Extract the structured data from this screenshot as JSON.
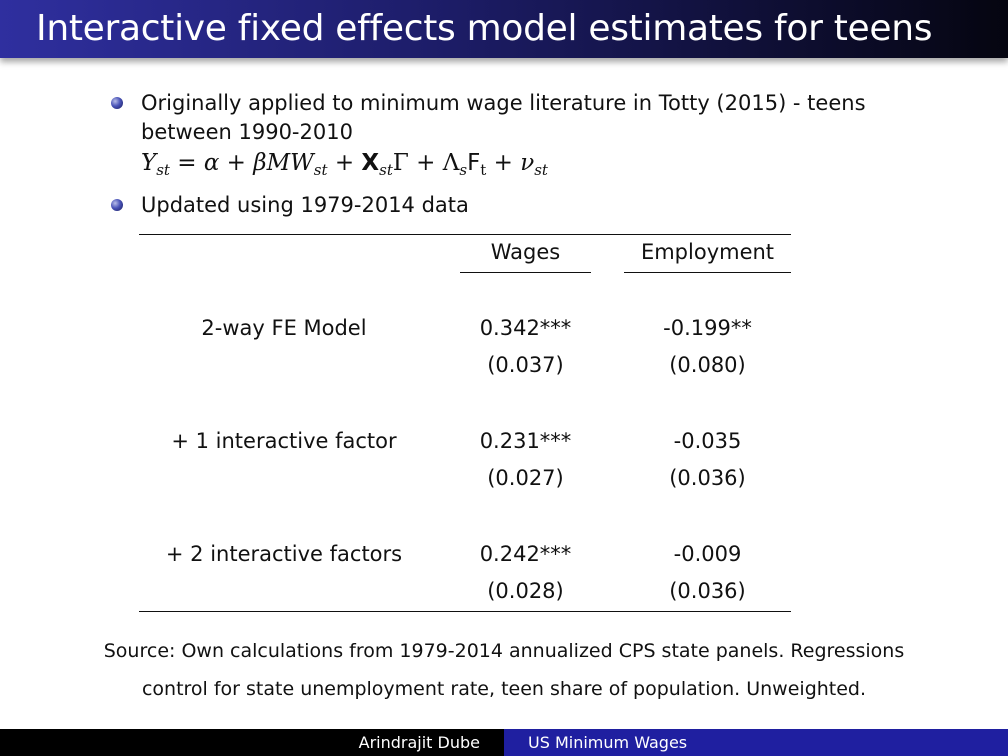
{
  "slide": {
    "title": "Interactive fixed effects model estimates for teens"
  },
  "bullets": [
    {
      "line1": "Originally applied to minimum wage literature in Totty (2015) - teens",
      "line2": "between 1990-2010"
    },
    {
      "line1": "Updated using 1979-2014 data"
    }
  ],
  "table": {
    "headers": [
      "Wages",
      "Employment"
    ],
    "rows": [
      {
        "label": "2-way FE Model",
        "wages": "0.342***",
        "wages_se": "(0.037)",
        "employment": "-0.199**",
        "employment_se": "(0.080)"
      },
      {
        "label": "+ 1 interactive factor",
        "wages": "0.231***",
        "wages_se": "(0.027)",
        "employment": "-0.035",
        "employment_se": "(0.036)"
      },
      {
        "label": "+ 2 interactive factors",
        "wages": "0.242***",
        "wages_se": "(0.028)",
        "employment": "-0.009",
        "employment_se": "(0.036)"
      }
    ]
  },
  "note": {
    "line1": "Source: Own calculations from 1979-2014 annualized CPS state panels. Regressions",
    "line2": "control for state unemployment rate, teen share of population. Unweighted."
  },
  "footer": {
    "author": "Arindrajit Dube",
    "talk_title": "US Minimum Wages"
  }
}
